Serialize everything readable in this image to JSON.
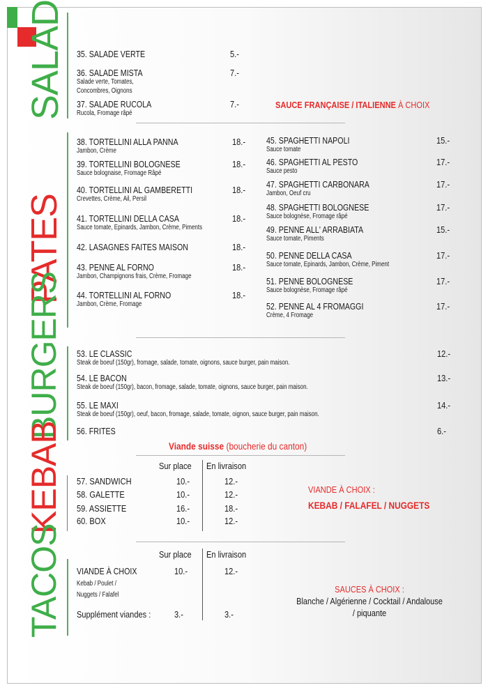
{
  "colors": {
    "green": "#3fae49",
    "red": "#e52b2b"
  },
  "sections": {
    "salades": {
      "title": "SALADES",
      "note": {
        "red": "SAUCE FRANÇAISE / ITALIENNE",
        "plain": " À CHOIX"
      },
      "items": [
        {
          "name": "35. SALADE VERTE",
          "desc": [],
          "price": "5.-"
        },
        {
          "name": "36. SALADE MISTA",
          "desc": [
            "Salade verte, Tomates,",
            "Concombres, Oignons"
          ],
          "price": "7.-"
        },
        {
          "name": "37. SALADE RUCOLA",
          "desc": [
            "Rucola, Fromage râpé"
          ],
          "price": "7.-"
        }
      ]
    },
    "pates": {
      "title": "PATES",
      "left": [
        {
          "name": "38. TORTELLINI ALLA PANNA",
          "desc": [
            "Jambon, Crème"
          ],
          "price": "18.-"
        },
        {
          "name": "39. TORTELLINI BOLOGNESE",
          "desc": [
            "Sauce bolognaise, Fromage Râpé"
          ],
          "price": "18.-"
        },
        {
          "name": "40. TORTELLINI AL GAMBERETTI",
          "desc": [
            "Crevettes, Crème, Ail, Persil"
          ],
          "price": "18.-"
        },
        {
          "name": "41. TORTELLINI DELLA CASA",
          "desc": [
            "Sauce tomate, Epinards, Jambon, Crème, Piments"
          ],
          "price": "18.-"
        },
        {
          "name": "42. LASAGNES FAITES MAISON",
          "desc": [],
          "price": "18.-"
        },
        {
          "name": "43. PENNE AL FORNO",
          "desc": [
            "Jambon, Champignons frais, Crème, Fromage"
          ],
          "price": "18.-"
        },
        {
          "name": "44. TORTELLINI AL FORNO",
          "desc": [
            "Jambon, Crème, Fromage"
          ],
          "price": "18.-"
        }
      ],
      "right": [
        {
          "name": "45. SPAGHETTI NAPOLI",
          "desc": [
            "Sauce tomate"
          ],
          "price": "15.-"
        },
        {
          "name": "46. SPAGHETTI AL PESTO",
          "desc": [
            "Sauce pesto"
          ],
          "price": "17.-"
        },
        {
          "name": "47. SPAGHETTI CARBONARA",
          "desc": [
            "Jambon, Oeuf cru"
          ],
          "price": "17.-"
        },
        {
          "name": "48. SPAGHETTI BOLOGNESE",
          "desc": [
            "Sauce bolognèse, Fromage râpé"
          ],
          "price": "17.-"
        },
        {
          "name": "49. PENNE ALL' ARRABIATA",
          "desc": [
            "Sauce tomate, Piments"
          ],
          "price": "15.-"
        },
        {
          "name": "50. PENNE DELLA CASA",
          "desc": [
            "Sauce tomate, Epinards, Jambon, Crème, Piment"
          ],
          "price": "17.-"
        },
        {
          "name": "51. PENNE BOLOGNESE",
          "desc": [
            "Sauce bolognèse, Fromage râpé"
          ],
          "price": "17.-"
        },
        {
          "name": "52. PENNE AL 4 FROMAGGI",
          "desc": [
            "Crème, 4 Fromage"
          ],
          "price": "17.-"
        }
      ]
    },
    "burgers": {
      "title": "BURGERS",
      "note": {
        "red": "Viande suisse",
        "plain": " (boucherie du canton)"
      },
      "items": [
        {
          "name": "53. LE CLASSIC",
          "desc": [
            "Steak de boeuf (150gr), fromage, salade, tomate, oignons, sauce burger, pain maison."
          ],
          "price": "12.-"
        },
        {
          "name": "54. LE BACON",
          "desc": [
            "Steak de boeuf (150gr), bacon, fromage, salade, tomate, oignons, sauce burger, pain maison."
          ],
          "price": "13.-"
        },
        {
          "name": "55. LE MAXI",
          "desc": [
            "Steak de boeuf (150gr), oeuf, bacon, fromage, salade, tomate, oignon, sauce burger, pain maison."
          ],
          "price": "14.-"
        },
        {
          "name": "56. FRITES",
          "desc": [],
          "price": "6.-"
        }
      ]
    },
    "kebab": {
      "title": "KEBAB",
      "col1": "Sur place",
      "col2": "En livraison",
      "items": [
        {
          "name": "57. SANDWICH",
          "price1": "10.-",
          "price2": "12.-"
        },
        {
          "name": "58. GALETTE",
          "price1": "10.-",
          "price2": "12.-"
        },
        {
          "name": "59. ASSIETTE",
          "price1": "16.-",
          "price2": "18.-"
        },
        {
          "name": "60. BOX",
          "price1": "10.-",
          "price2": "12.-"
        }
      ],
      "note_title": "VIANDE À CHOIX :",
      "note_choices": "KEBAB / FALAFEL / NUGGETS"
    },
    "tacos": {
      "title": "TACOS",
      "col1": "Sur place",
      "col2": "En livraison",
      "item": {
        "name": "VIANDE À CHOIX",
        "desc": [
          "Kebab / Poulet /",
          "Nuggets / Falafel"
        ],
        "price1": "10.-",
        "price2": "12.-"
      },
      "supplement": {
        "name": "Supplément viandes :",
        "price1": "3.-",
        "price2": "3.-"
      },
      "sauces_title": "SAUCES À CHOIX :",
      "sauces_line1": "Blanche / Algérienne / Cocktail / Andalouse",
      "sauces_line2": "/ piquante"
    }
  }
}
